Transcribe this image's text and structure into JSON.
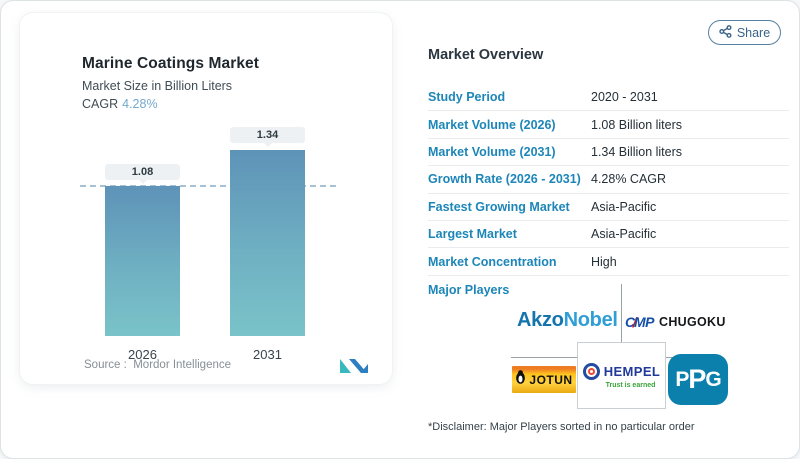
{
  "share_button": {
    "label": "Share"
  },
  "chart_card": {
    "title": "Marine Coatings Market",
    "subtitle": "Market Size in Billion Liters",
    "cagr_label": "CAGR",
    "cagr_value": "4.28%",
    "source_label": "Source :",
    "source_name": "Mordor Intelligence",
    "bars": [
      {
        "year": "2026",
        "value": "1.08"
      },
      {
        "year": "2031",
        "value": "1.34"
      }
    ]
  },
  "chart_data": {
    "type": "bar",
    "title": "Marine Coatings Market",
    "subtitle": "Market Size in Billion Liters",
    "ylabel": "Market Size (Billion Liters)",
    "categories": [
      "2026",
      "2031"
    ],
    "values": [
      1.08,
      1.34
    ],
    "cagr": "4.28%",
    "reference_line": 1.08,
    "grid": false,
    "bar_color_top": "#5e93b8",
    "bar_color_bottom": "#7ac3c9",
    "source": "Mordor Intelligence"
  },
  "overview": {
    "heading": "Market Overview",
    "rows": [
      {
        "label": "Study Period",
        "value": "2020 - 2031"
      },
      {
        "label": "Market Volume (2026)",
        "value": "1.08 Billion liters"
      },
      {
        "label": "Market Volume (2031)",
        "value": "1.34 Billion liters"
      },
      {
        "label": "Growth Rate (2026 - 2031)",
        "value": "4.28% CAGR"
      },
      {
        "label": "Fastest Growing Market",
        "value": "Asia-Pacific"
      },
      {
        "label": "Largest Market",
        "value": "Asia-Pacific"
      },
      {
        "label": "Market Concentration",
        "value": "High"
      }
    ],
    "major_players_label": "Major Players",
    "disclaimer": "*Disclaimer: Major Players sorted in no particular order"
  },
  "logos": {
    "akzonobel": {
      "part1": "Akzo",
      "part2": "Nobel"
    },
    "cmp": {
      "c": "C",
      "slash": "/",
      "mp": "MP",
      "chugoku": "CHUGOKU"
    },
    "jotun": {
      "name": "JOTUN"
    },
    "hempel": {
      "name": "HEMPEL",
      "tagline": "Trust is earned"
    },
    "ppg": {
      "p1": "P",
      "p2": "P",
      "g": "G"
    }
  },
  "colors": {
    "accent_blue": "#1d86b8",
    "cagr_blue": "#74a8cc",
    "bar_top": "#5e93b8",
    "bar_bottom": "#7ac3c9",
    "share_border": "#55809f"
  }
}
